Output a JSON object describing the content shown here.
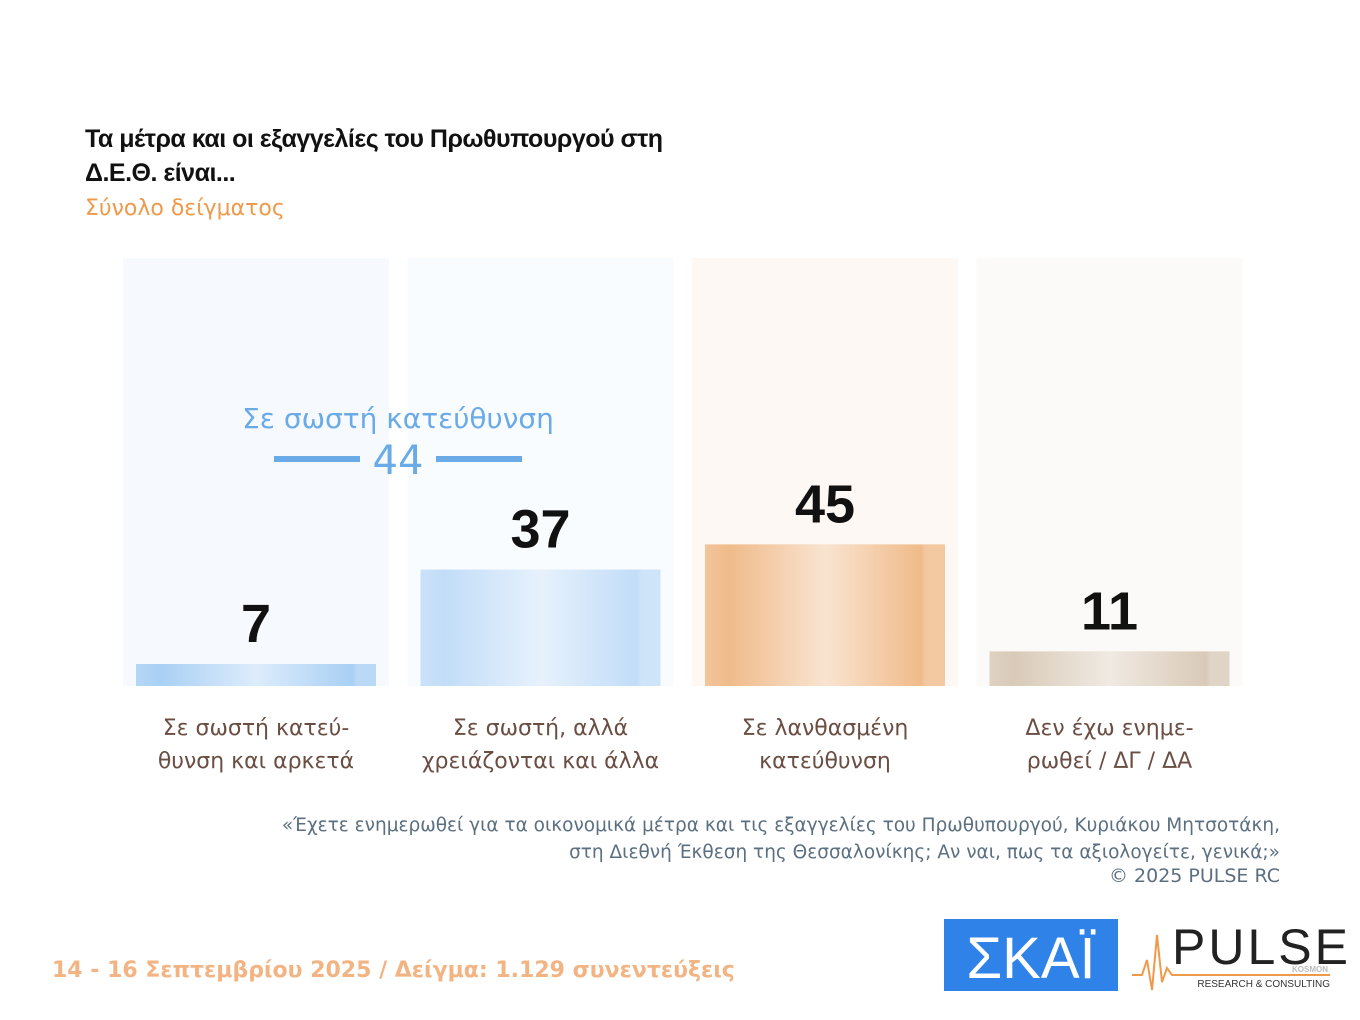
{
  "chart_data": {
    "type": "bar",
    "title": "Τα μέτρα και οι εξαγγελίες του Πρωθυπουργού στη Δ.Ε.Θ. είναι...",
    "subtitle": "Σύνολο δείγματος",
    "categories": [
      "Σε σωστή κατεύ-\nθυνση και αρκετά",
      "Σε σωστή, αλλά\nχρειάζονται και άλλα",
      "Σε λανθασμένη\nκατεύθυνση",
      "Δεν έχω ενημε-\nρωθεί / ΔΓ / ΔΑ"
    ],
    "values": [
      7,
      37,
      45,
      11
    ],
    "colors": [
      "#a9d0f5",
      "#c2ddf8",
      "#f0bb8a",
      "#d9cab8"
    ],
    "ylim": [
      0,
      136
    ],
    "annotation": {
      "text": "Σε σωστή κατεύθυνση",
      "value": 44,
      "color": "#6aaae6"
    },
    "note": "«Έχετε ενημερωθεί για τα οικονομικά μέτρα και τις εξαγγελίες του Πρωθυπουργού, Κυριάκου Μητσοτάκη,\nστη Διεθνή Έκθεση της Θεσσαλονίκης; Αν ναι, πως τα αξιολογείτε, γενικά;»",
    "copyright": "©  2025  PULSE RC",
    "footer": "14 - 16 Σεπτεμβρίου 2025  /  Δείγμα:  1.129 συνεντεύξεις"
  },
  "logos": {
    "skai": "ΣΚΑΪ",
    "pulse": "PULSE",
    "pulse_sub": "RESEARCH & CONSULTING",
    "pulse_tag": "KOSMON"
  }
}
